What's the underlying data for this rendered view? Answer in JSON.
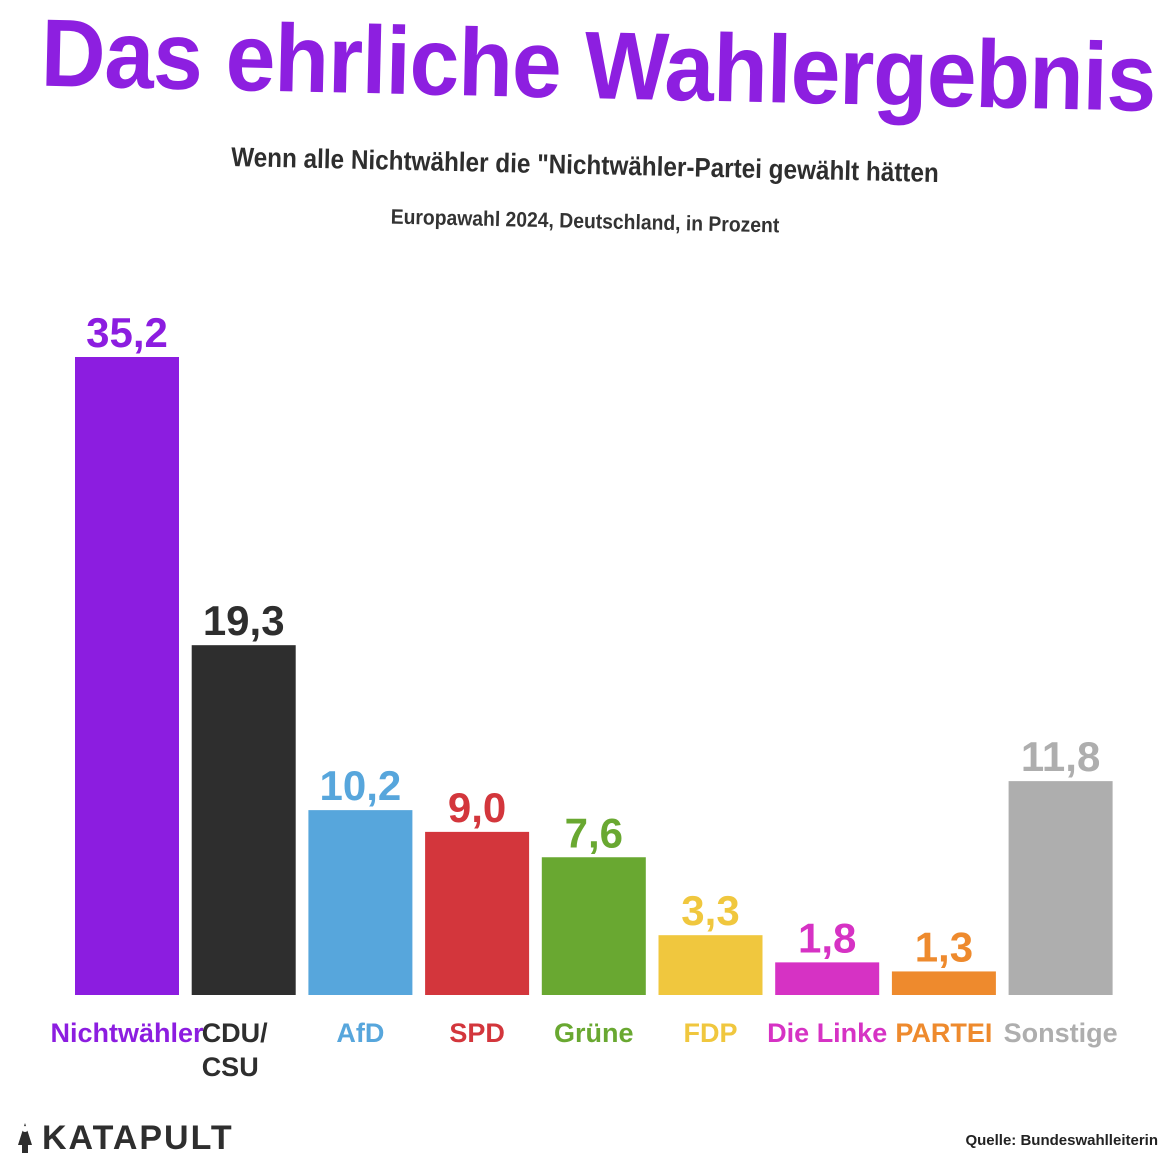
{
  "header": {
    "title": "Das ehrliche Wahlergebnis",
    "subtitle": "Wenn alle Nichtwähler die \"Nichtwähler-Partei gewählt hätten",
    "note": "Europawahl 2024, Deutschland, in Prozent"
  },
  "chart_data": {
    "type": "bar",
    "categories": [
      "Nichtwähler",
      "CDU/\nCSU",
      "AfD",
      "SPD",
      "Grüne",
      "FDP",
      "Die Linke",
      "PARTEI",
      "Sonstige"
    ],
    "values": [
      35.2,
      19.3,
      10.2,
      9.0,
      7.6,
      3.3,
      1.8,
      1.3,
      11.8
    ],
    "value_labels": [
      "35,2",
      "19,3",
      "10,2",
      "9,0",
      "7,6",
      "3,3",
      "1,8",
      "1,3",
      "11,8"
    ],
    "colors": [
      "#8c1de0",
      "#2e2e2e",
      "#57a6dc",
      "#d3363c",
      "#69a831",
      "#f0c73e",
      "#d632c4",
      "#ee8a2d",
      "#aeaeae"
    ],
    "label_colors": [
      "#8c1de0",
      "#2e2e2e",
      "#57a6dc",
      "#d3363c",
      "#69a831",
      "#f0c73e",
      "#d632c4",
      "#ee8a2d",
      "#aeaeae"
    ],
    "ylim": [
      0,
      35.2
    ],
    "grid": false,
    "legend": "none"
  },
  "footer": {
    "logo": "KATAPULT",
    "source": "Quelle: Bundeswahlleiterin"
  }
}
